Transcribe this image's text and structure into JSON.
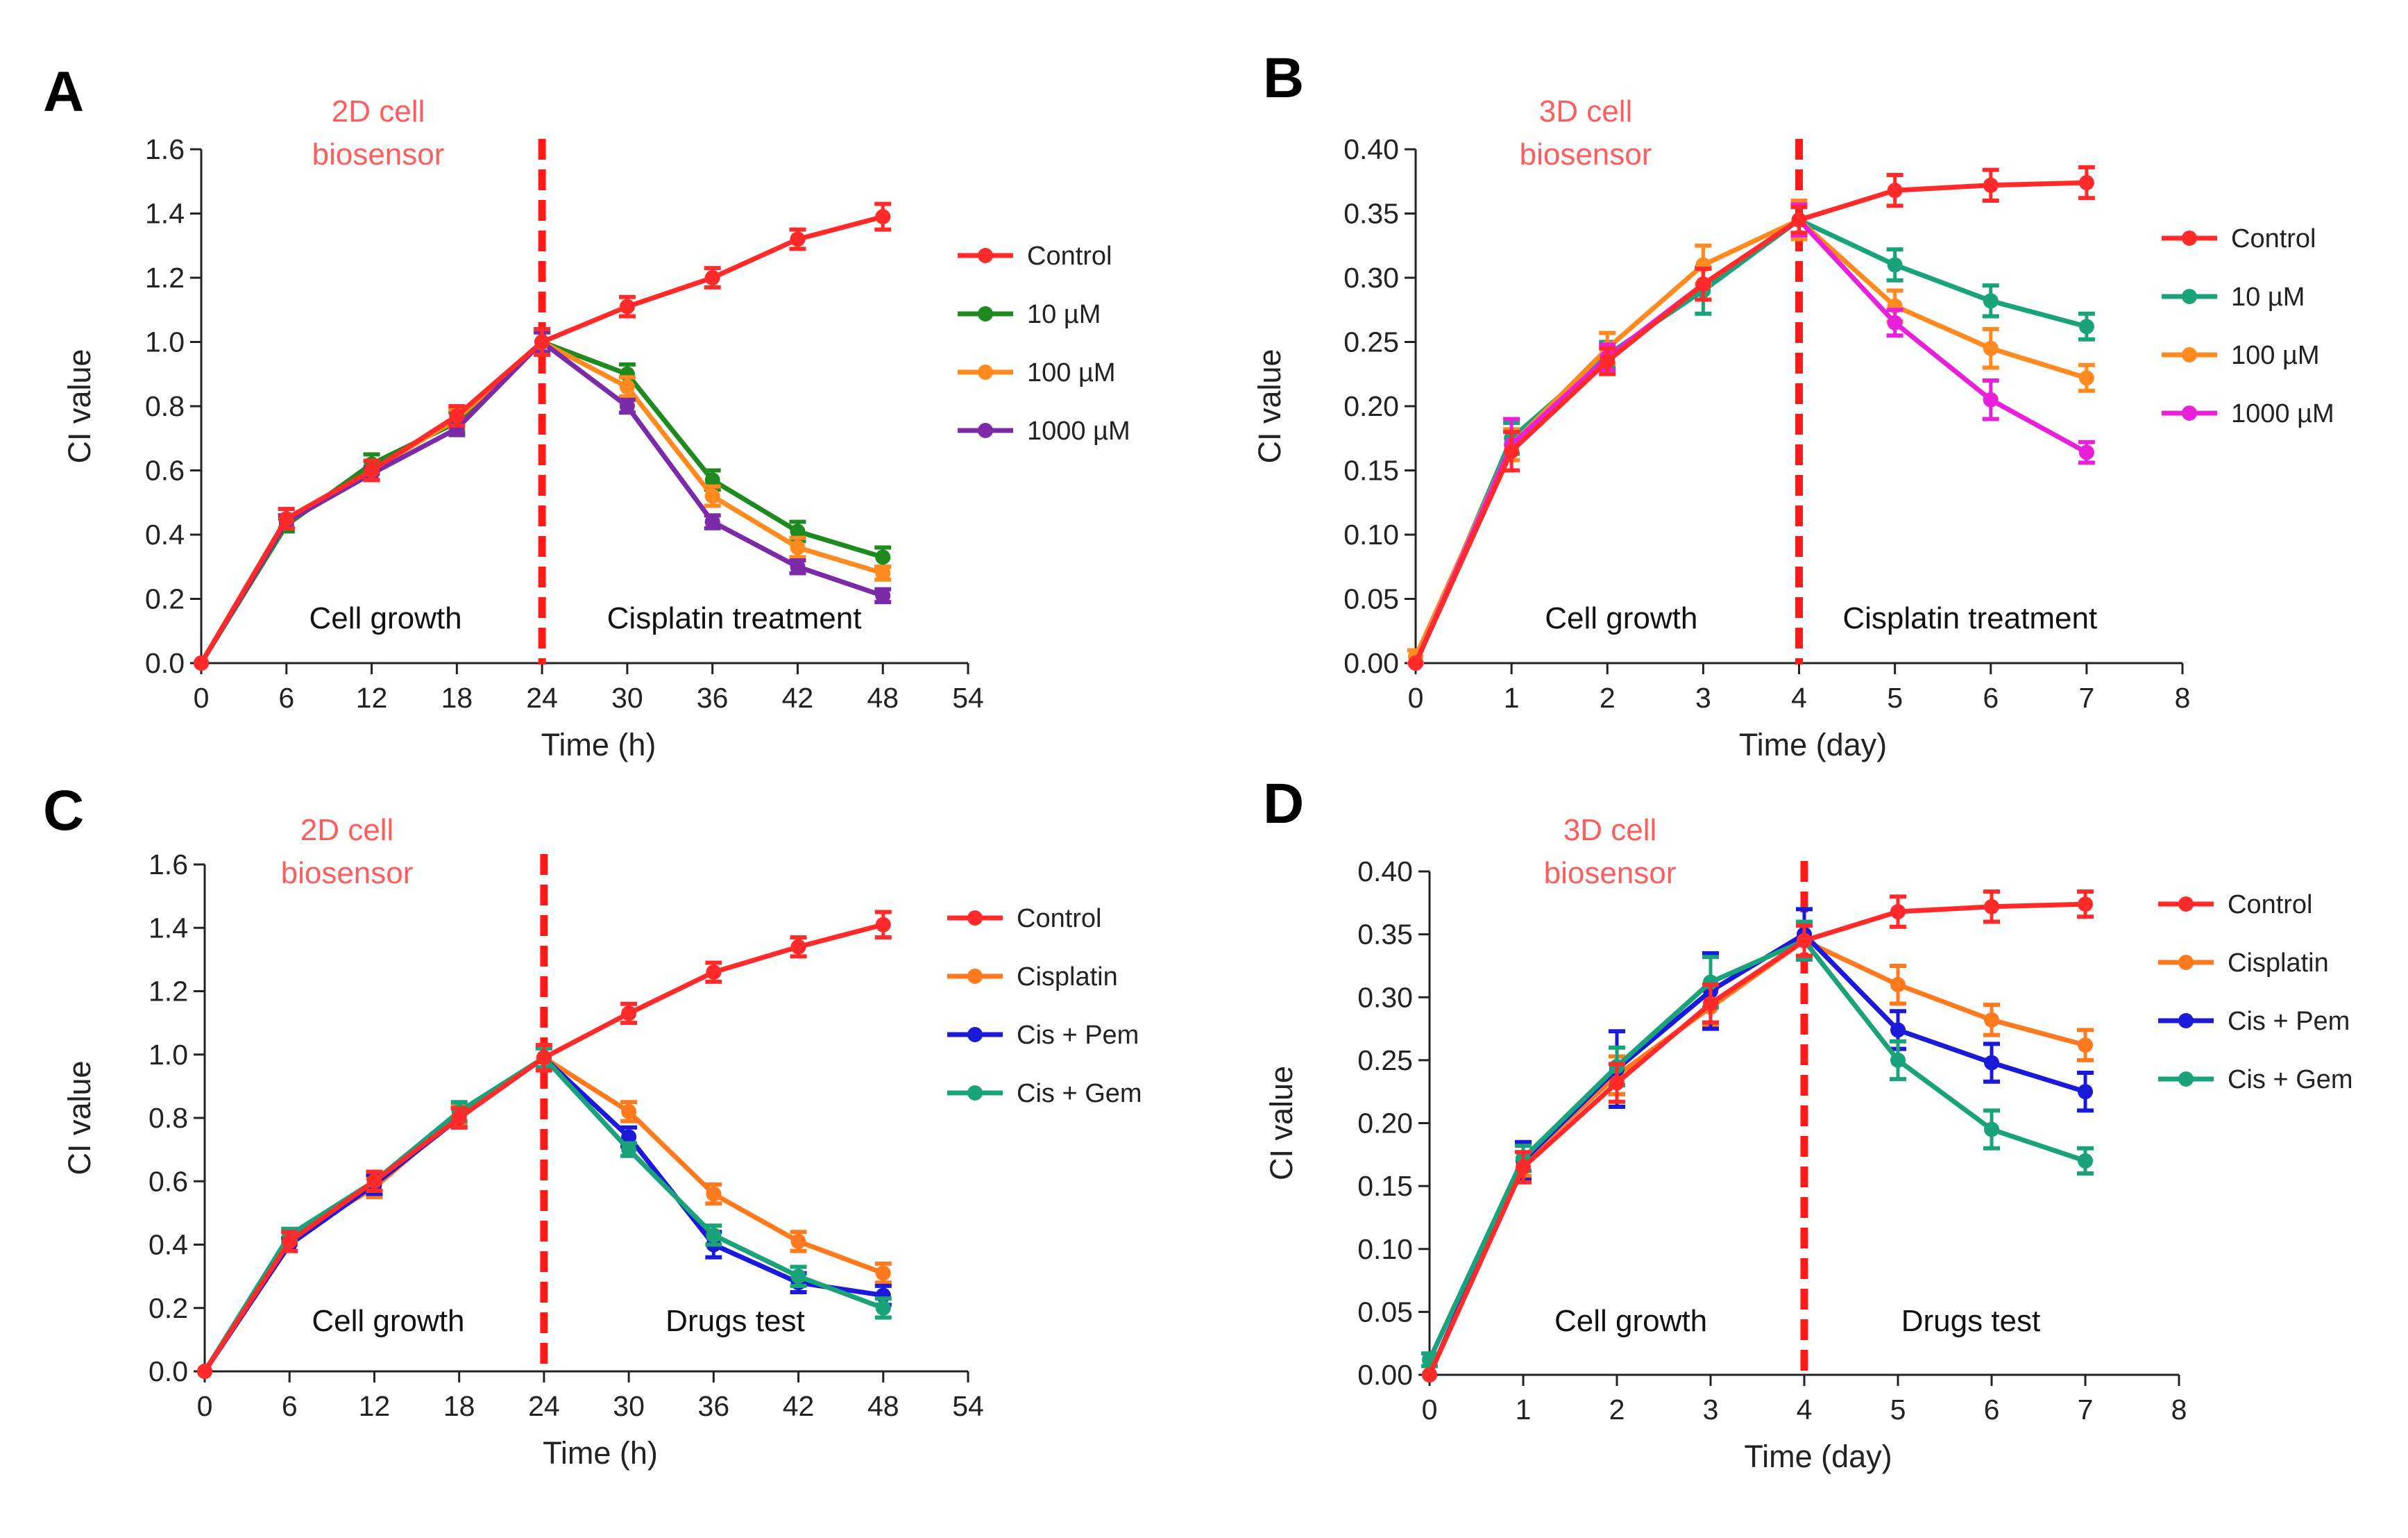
{
  "chart_data": [
    {
      "panel": "A",
      "type": "line",
      "corner_label": [
        "2D cell",
        "biosensor"
      ],
      "xlabel": "Time (h)",
      "ylabel": "CI value",
      "xlim": [
        0,
        54
      ],
      "ylim": [
        0,
        1.6
      ],
      "xticks": [
        0,
        6,
        12,
        18,
        24,
        30,
        36,
        42,
        48,
        54
      ],
      "xtick_labels": [
        "0",
        "6",
        "12",
        "18",
        "24",
        "30",
        "36",
        "42",
        "48",
        "54"
      ],
      "yticks": [
        0,
        0.2,
        0.4,
        0.6,
        0.8,
        1.0,
        1.2,
        1.4,
        1.6
      ],
      "ytick_labels": [
        "0.0",
        "0.2",
        "0.4",
        "0.6",
        "0.8",
        "1.0",
        "1.2",
        "1.4",
        "1.6"
      ],
      "divider_x": 24,
      "phase_labels": [
        "Cell growth",
        "Cisplatin treatment"
      ],
      "series": [
        {
          "name": "Control",
          "color": "#ff2a2a",
          "x": [
            0,
            6,
            12,
            18,
            24,
            30,
            36,
            42,
            48
          ],
          "values": [
            0.0,
            0.45,
            0.6,
            0.77,
            1.0,
            1.11,
            1.2,
            1.32,
            1.39
          ],
          "errors": [
            0,
            0.03,
            0.03,
            0.03,
            0.04,
            0.03,
            0.03,
            0.03,
            0.04
          ]
        },
        {
          "name": "10 µM",
          "color": "#1f8a1f",
          "x": [
            0,
            6,
            12,
            18,
            24,
            30,
            36,
            42,
            48
          ],
          "values": [
            0.0,
            0.43,
            0.62,
            0.75,
            1.0,
            0.9,
            0.57,
            0.41,
            0.33
          ],
          "errors": [
            0,
            0.02,
            0.03,
            0.03,
            0.03,
            0.03,
            0.03,
            0.03,
            0.03
          ]
        },
        {
          "name": "100 µM",
          "color": "#ff8a1f",
          "x": [
            0,
            6,
            12,
            18,
            24,
            30,
            36,
            42,
            48
          ],
          "values": [
            0.0,
            0.44,
            0.6,
            0.76,
            1.0,
            0.86,
            0.52,
            0.36,
            0.28
          ],
          "errors": [
            0,
            0.02,
            0.03,
            0.03,
            0.03,
            0.03,
            0.03,
            0.03,
            0.02
          ]
        },
        {
          "name": "1000 µM",
          "color": "#7b2ba8",
          "x": [
            0,
            6,
            12,
            18,
            24,
            30,
            36,
            42,
            48
          ],
          "values": [
            0.0,
            0.44,
            0.59,
            0.73,
            1.0,
            0.8,
            0.44,
            0.3,
            0.21
          ],
          "errors": [
            0,
            0.02,
            0.02,
            0.02,
            0.03,
            0.02,
            0.02,
            0.02,
            0.02
          ]
        }
      ]
    },
    {
      "panel": "B",
      "type": "line",
      "corner_label": [
        "3D cell",
        "biosensor"
      ],
      "xlabel": "Time (day)",
      "ylabel": "CI value",
      "xlim": [
        0,
        8
      ],
      "ylim": [
        0,
        0.4
      ],
      "xticks": [
        0,
        1,
        2,
        3,
        4,
        5,
        6,
        7,
        8
      ],
      "xtick_labels": [
        "0",
        "1",
        "2",
        "3",
        "4",
        "5",
        "6",
        "7",
        "8"
      ],
      "yticks": [
        0,
        0.05,
        0.1,
        0.15,
        0.2,
        0.25,
        0.3,
        0.35,
        0.4
      ],
      "ytick_labels": [
        "0.00",
        "0.05",
        "0.10",
        "0.15",
        "0.20",
        "0.25",
        "0.30",
        "0.35",
        "0.40"
      ],
      "divider_x": 4,
      "phase_labels": [
        "Cell growth",
        "Cisplatin treatment"
      ],
      "series": [
        {
          "name": "Control",
          "color": "#ff2a2a",
          "x": [
            0,
            1,
            2,
            3,
            4,
            5,
            6,
            7
          ],
          "values": [
            0.0,
            0.165,
            0.235,
            0.295,
            0.345,
            0.368,
            0.372,
            0.374
          ],
          "errors": [
            0,
            0.015,
            0.01,
            0.012,
            0.01,
            0.012,
            0.012,
            0.012
          ]
        },
        {
          "name": "10 µM",
          "color": "#1aa37a",
          "x": [
            0,
            1,
            2,
            3,
            4,
            5,
            6,
            7
          ],
          "values": [
            0.0,
            0.175,
            0.24,
            0.29,
            0.345,
            0.31,
            0.282,
            0.262
          ],
          "errors": [
            0,
            0.012,
            0.01,
            0.018,
            0.012,
            0.012,
            0.012,
            0.01
          ]
        },
        {
          "name": "100 µM",
          "color": "#ff8a1f",
          "x": [
            0,
            1,
            2,
            3,
            4,
            5,
            6,
            7
          ],
          "values": [
            0.005,
            0.17,
            0.245,
            0.31,
            0.345,
            0.278,
            0.245,
            0.222
          ],
          "errors": [
            0.005,
            0.012,
            0.012,
            0.015,
            0.015,
            0.012,
            0.015,
            0.01
          ]
        },
        {
          "name": "1000 µM",
          "color": "#e820d8",
          "x": [
            0,
            1,
            2,
            3,
            4,
            5,
            6,
            7
          ],
          "values": [
            0.0,
            0.17,
            0.238,
            0.295,
            0.345,
            0.265,
            0.205,
            0.164
          ],
          "errors": [
            0,
            0.02,
            0.01,
            0.012,
            0.012,
            0.01,
            0.015,
            0.008
          ]
        }
      ]
    },
    {
      "panel": "C",
      "type": "line",
      "corner_label": [
        "2D cell",
        "biosensor"
      ],
      "xlabel": "Time (h)",
      "ylabel": "CI value",
      "xlim": [
        0,
        54
      ],
      "ylim": [
        0,
        1.6
      ],
      "xticks": [
        0,
        6,
        12,
        18,
        24,
        30,
        36,
        42,
        48,
        54
      ],
      "xtick_labels": [
        "0",
        "6",
        "12",
        "18",
        "24",
        "30",
        "36",
        "42",
        "48",
        "54"
      ],
      "yticks": [
        0,
        0.2,
        0.4,
        0.6,
        0.8,
        1.0,
        1.2,
        1.4,
        1.6
      ],
      "ytick_labels": [
        "0.0",
        "0.2",
        "0.4",
        "0.6",
        "0.8",
        "1.0",
        "1.2",
        "1.4",
        "1.6"
      ],
      "divider_x": 24,
      "phase_labels": [
        "Cell growth",
        "Drugs test"
      ],
      "series": [
        {
          "name": "Control",
          "color": "#ff2a2a",
          "x": [
            0,
            6,
            12,
            18,
            24,
            30,
            36,
            42,
            48
          ],
          "values": [
            0.0,
            0.41,
            0.6,
            0.8,
            0.99,
            1.13,
            1.26,
            1.34,
            1.41
          ],
          "errors": [
            0,
            0.03,
            0.03,
            0.03,
            0.04,
            0.03,
            0.03,
            0.03,
            0.04
          ]
        },
        {
          "name": "Cisplatin",
          "color": "#ff7a1f",
          "x": [
            0,
            6,
            12,
            18,
            24,
            30,
            36,
            42,
            48
          ],
          "values": [
            0.0,
            0.42,
            0.58,
            0.81,
            0.99,
            0.82,
            0.56,
            0.41,
            0.31
          ],
          "errors": [
            0,
            0.02,
            0.03,
            0.03,
            0.03,
            0.03,
            0.03,
            0.03,
            0.03
          ]
        },
        {
          "name": "Cis + Pem",
          "color": "#1a1ad8",
          "x": [
            0,
            6,
            12,
            18,
            24,
            30,
            36,
            42,
            48
          ],
          "values": [
            0.0,
            0.4,
            0.59,
            0.8,
            0.99,
            0.74,
            0.4,
            0.28,
            0.24
          ],
          "errors": [
            0,
            0.02,
            0.03,
            0.03,
            0.03,
            0.03,
            0.04,
            0.03,
            0.03
          ]
        },
        {
          "name": "Cis + Gem",
          "color": "#1aa37a",
          "x": [
            0,
            6,
            12,
            18,
            24,
            30,
            36,
            42,
            48
          ],
          "values": [
            0.0,
            0.43,
            0.6,
            0.82,
            0.99,
            0.7,
            0.43,
            0.3,
            0.2
          ],
          "errors": [
            0,
            0.02,
            0.03,
            0.03,
            0.03,
            0.02,
            0.03,
            0.03,
            0.03
          ]
        }
      ]
    },
    {
      "panel": "D",
      "type": "line",
      "corner_label": [
        "3D cell",
        "biosensor"
      ],
      "xlabel": "Time (day)",
      "ylabel": "CI value",
      "xlim": [
        0,
        8
      ],
      "ylim": [
        0,
        0.4
      ],
      "xticks": [
        0,
        1,
        2,
        3,
        4,
        5,
        6,
        7,
        8
      ],
      "xtick_labels": [
        "0",
        "1",
        "2",
        "3",
        "4",
        "5",
        "6",
        "7",
        "8"
      ],
      "yticks": [
        0,
        0.05,
        0.1,
        0.15,
        0.2,
        0.25,
        0.3,
        0.35,
        0.4
      ],
      "ytick_labels": [
        "0.00",
        "0.05",
        "0.10",
        "0.15",
        "0.20",
        "0.25",
        "0.30",
        "0.35",
        "0.40"
      ],
      "divider_x": 4,
      "phase_labels": [
        "Cell growth",
        "Drugs test"
      ],
      "series": [
        {
          "name": "Control",
          "color": "#ff2a2a",
          "x": [
            0,
            1,
            2,
            3,
            4,
            5,
            6,
            7
          ],
          "values": [
            0.0,
            0.165,
            0.232,
            0.295,
            0.345,
            0.368,
            0.372,
            0.374
          ],
          "errors": [
            0,
            0.012,
            0.015,
            0.015,
            0.012,
            0.012,
            0.012,
            0.01
          ]
        },
        {
          "name": "Cisplatin",
          "color": "#ff7a1f",
          "x": [
            0,
            1,
            2,
            3,
            4,
            5,
            6,
            7
          ],
          "values": [
            0.0,
            0.17,
            0.238,
            0.292,
            0.345,
            0.31,
            0.282,
            0.262
          ],
          "errors": [
            0,
            0.012,
            0.015,
            0.015,
            0.015,
            0.015,
            0.012,
            0.012
          ]
        },
        {
          "name": "Cis + Pem",
          "color": "#1a1ad8",
          "x": [
            0,
            1,
            2,
            3,
            4,
            5,
            6,
            7
          ],
          "values": [
            0.0,
            0.17,
            0.243,
            0.305,
            0.35,
            0.274,
            0.248,
            0.225
          ],
          "errors": [
            0,
            0.015,
            0.03,
            0.03,
            0.02,
            0.015,
            0.015,
            0.015
          ]
        },
        {
          "name": "Cis + Gem",
          "color": "#1aa37a",
          "x": [
            0,
            1,
            2,
            3,
            4,
            5,
            6,
            7
          ],
          "values": [
            0.012,
            0.172,
            0.245,
            0.312,
            0.345,
            0.25,
            0.195,
            0.17
          ],
          "errors": [
            0.005,
            0.01,
            0.015,
            0.02,
            0.015,
            0.015,
            0.015,
            0.01
          ]
        }
      ]
    }
  ]
}
